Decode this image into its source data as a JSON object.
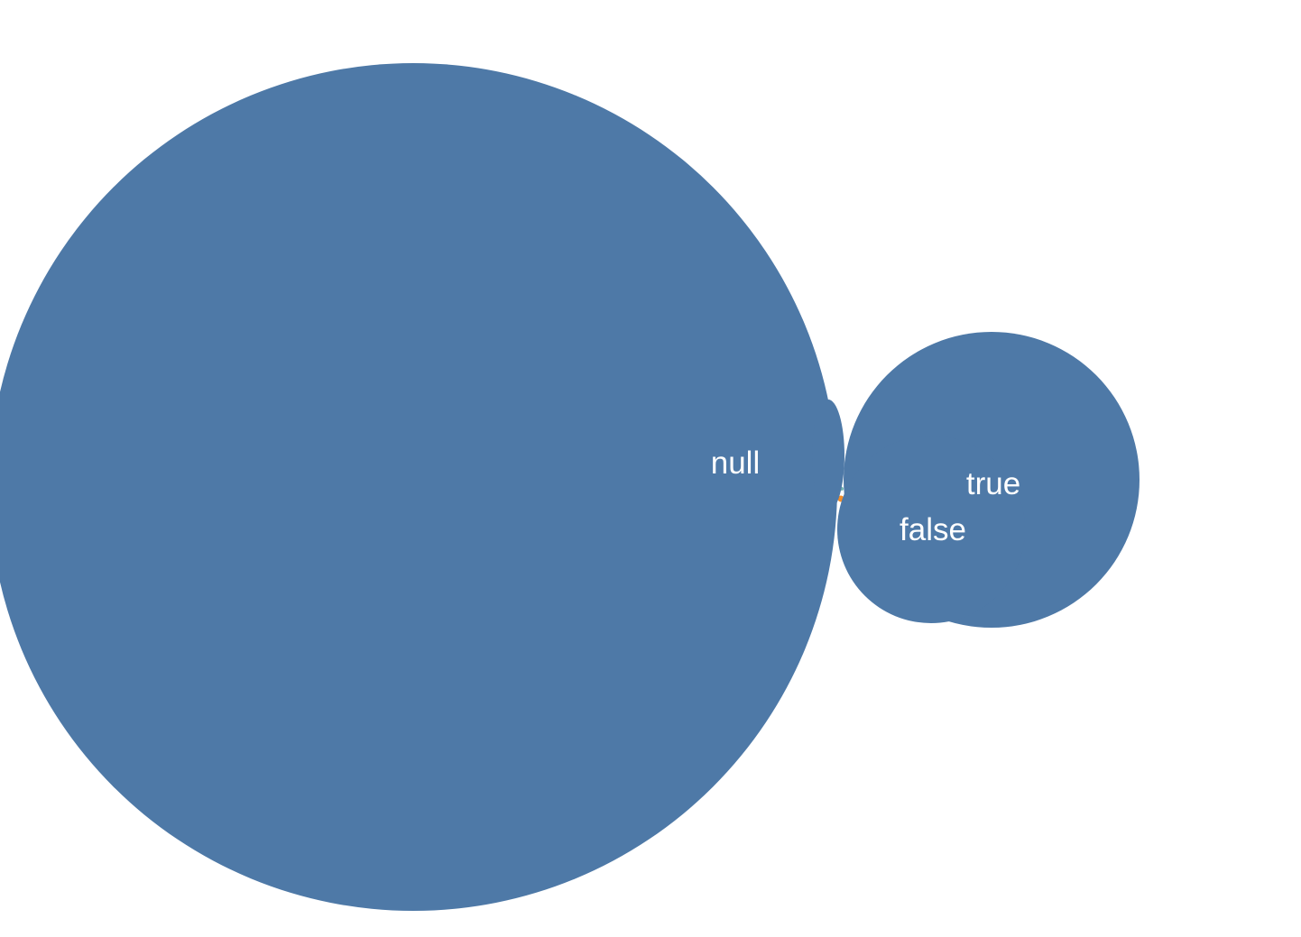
{
  "chart_data": {
    "type": "bubble",
    "fill_color": "#4e79a7",
    "accent_colors": [
      "#f28e2b",
      "#e15759",
      "#76b7b2"
    ],
    "bubbles": [
      {
        "label": "null",
        "relative_size": 1.0
      },
      {
        "label": "true",
        "relative_size": 0.122
      },
      {
        "label": "false",
        "relative_size": 0.049
      }
    ]
  }
}
